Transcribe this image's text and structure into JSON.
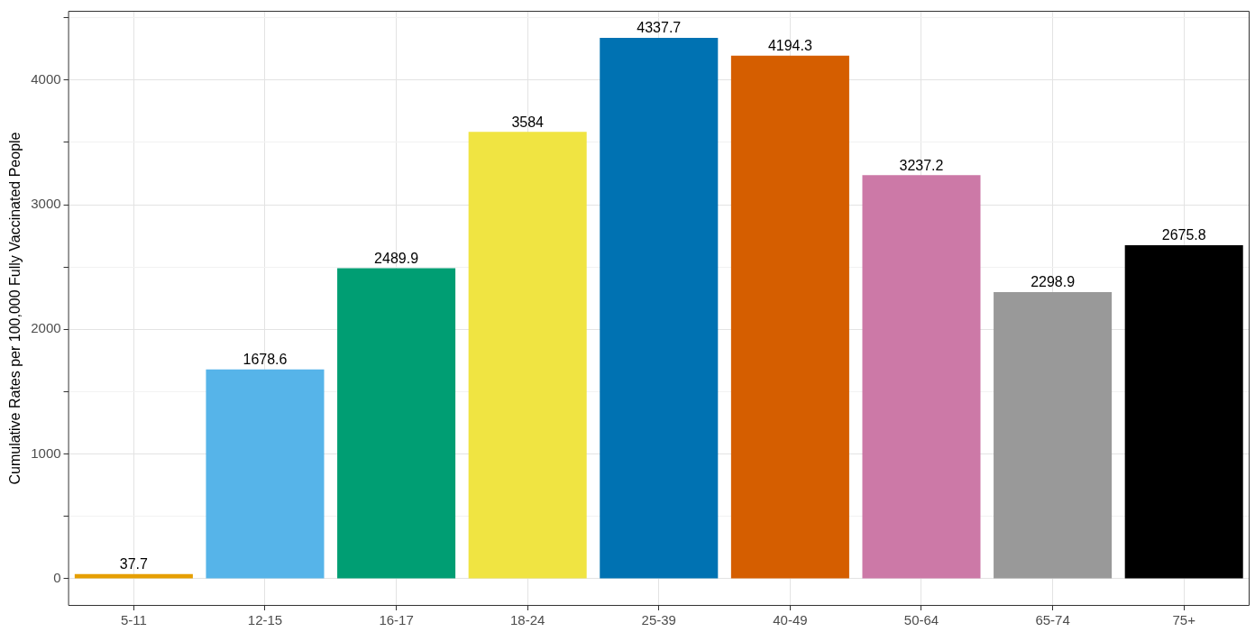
{
  "chart_data": {
    "type": "bar",
    "ylabel": "Cumulative Rates per 100,000 Fully Vaccinated People",
    "categories": [
      "5-11",
      "12-15",
      "16-17",
      "18-24",
      "25-39",
      "40-49",
      "50-64",
      "65-74",
      "75+"
    ],
    "values": [
      37.7,
      1678.6,
      2489.9,
      3584,
      4337.7,
      4194.3,
      3237.2,
      2298.9,
      2675.8
    ],
    "colors": [
      "#e69f00",
      "#56b4e9",
      "#009e73",
      "#f0e442",
      "#0072b2",
      "#d55e00",
      "#cc79a7",
      "#999999",
      "#000000"
    ],
    "ylim": [
      -216.9,
      4554.6
    ],
    "yticks": [
      0,
      {
        "value": 500,
        "label": null
      },
      1000,
      {
        "value": 1500,
        "label": null
      },
      2000,
      {
        "value": 2500,
        "label": null
      },
      3000,
      {
        "value": 3500,
        "label": null
      },
      4000,
      {
        "value": 4500,
        "label": null
      }
    ],
    "grid": true,
    "data_labels": true
  }
}
